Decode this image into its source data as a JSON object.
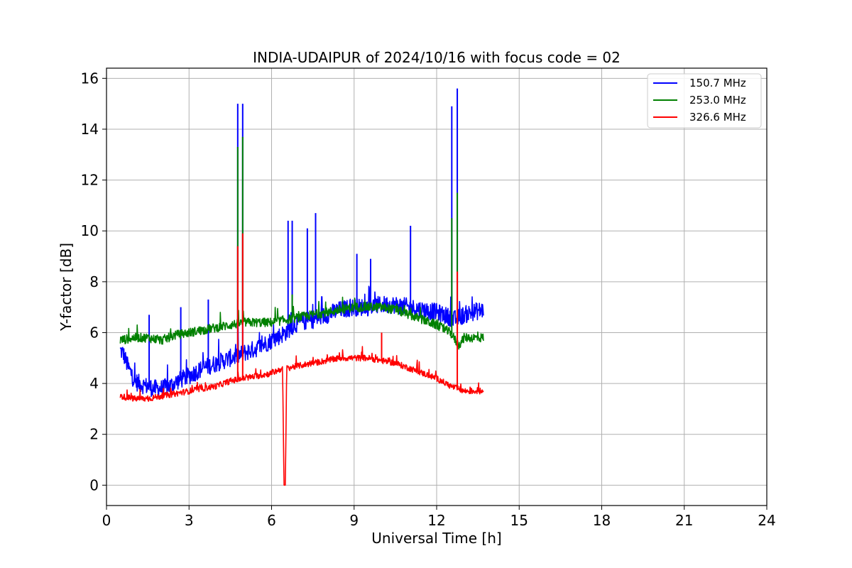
{
  "chart_data": {
    "type": "line",
    "title": "INDIA-UDAIPUR of 2024/10/16 with focus code = 02",
    "xlabel": "Universal Time [h]",
    "ylabel": "Y-factor [dB]",
    "xlim": [
      0,
      24
    ],
    "ylim": [
      -0.8,
      16.4
    ],
    "xticks": [
      0,
      3,
      6,
      9,
      12,
      15,
      18,
      21,
      24
    ],
    "yticks": [
      0,
      2,
      4,
      6,
      8,
      10,
      12,
      14,
      16
    ],
    "grid": true,
    "legend_position": "top-right",
    "series": [
      {
        "name": "150.7 MHz",
        "color": "#0000ff",
        "x": [
          0.5,
          0.6,
          0.7,
          0.8,
          0.9,
          1.0,
          1.2,
          1.4,
          1.5,
          1.7,
          2.0,
          2.3,
          2.6,
          3.0,
          3.5,
          4.0,
          4.5,
          4.8,
          5.0,
          5.5,
          6.0,
          6.5,
          6.8,
          7.0,
          7.5,
          8.0,
          8.5,
          9.0,
          9.5,
          10.0,
          10.5,
          11.0,
          11.5,
          12.0,
          12.5,
          12.6,
          12.8,
          13.0,
          13.3,
          13.7
        ],
        "y": [
          5.3,
          5.2,
          4.9,
          4.6,
          4.4,
          4.1,
          4.0,
          3.9,
          3.9,
          3.8,
          3.8,
          3.9,
          4.1,
          4.3,
          4.6,
          4.8,
          5.0,
          5.1,
          5.2,
          5.4,
          5.7,
          6.0,
          6.3,
          6.4,
          6.5,
          6.7,
          6.9,
          7.0,
          7.0,
          7.1,
          7.1,
          7.0,
          6.9,
          6.8,
          6.6,
          6.5,
          6.6,
          6.7,
          6.8,
          6.9
        ],
        "spikes": [
          {
            "x": 1.55,
            "y": 6.7
          },
          {
            "x": 2.7,
            "y": 7.0
          },
          {
            "x": 3.7,
            "y": 7.3
          },
          {
            "x": 4.77,
            "y": 15.0
          },
          {
            "x": 4.95,
            "y": 15.0
          },
          {
            "x": 6.6,
            "y": 10.4
          },
          {
            "x": 6.75,
            "y": 10.4
          },
          {
            "x": 7.3,
            "y": 10.1
          },
          {
            "x": 7.6,
            "y": 10.7
          },
          {
            "x": 9.1,
            "y": 9.1
          },
          {
            "x": 9.6,
            "y": 8.9
          },
          {
            "x": 11.05,
            "y": 10.2
          },
          {
            "x": 12.55,
            "y": 14.9
          },
          {
            "x": 12.75,
            "y": 15.6
          }
        ]
      },
      {
        "name": "253.0 MHz",
        "color": "#008000",
        "x": [
          0.5,
          1.0,
          1.5,
          2.0,
          2.5,
          3.0,
          3.5,
          4.0,
          4.5,
          5.0,
          5.5,
          6.0,
          6.5,
          7.0,
          7.5,
          8.0,
          8.5,
          9.0,
          9.5,
          10.0,
          10.5,
          11.0,
          11.5,
          12.0,
          12.5,
          12.8,
          13.0,
          13.3,
          13.7
        ],
        "y": [
          5.7,
          5.8,
          5.8,
          5.7,
          5.9,
          6.0,
          6.1,
          6.2,
          6.3,
          6.4,
          6.4,
          6.4,
          6.5,
          6.6,
          6.7,
          6.8,
          6.9,
          7.0,
          7.0,
          7.0,
          6.9,
          6.7,
          6.5,
          6.3,
          6.0,
          5.5,
          5.8,
          5.8,
          5.8
        ],
        "spikes": [
          {
            "x": 4.77,
            "y": 13.3
          },
          {
            "x": 4.95,
            "y": 13.7
          },
          {
            "x": 6.75,
            "y": 7.5
          },
          {
            "x": 12.55,
            "y": 10.5
          },
          {
            "x": 12.75,
            "y": 11.5
          }
        ]
      },
      {
        "name": "326.6 MHz",
        "color": "#ff0000",
        "x": [
          0.5,
          1.0,
          1.5,
          2.0,
          2.5,
          3.0,
          3.5,
          4.0,
          4.5,
          5.0,
          5.5,
          6.0,
          6.4,
          6.45,
          6.5,
          6.55,
          7.0,
          7.5,
          8.0,
          8.5,
          9.0,
          9.5,
          10.0,
          10.5,
          11.0,
          11.5,
          12.0,
          12.5,
          13.0,
          13.3,
          13.7
        ],
        "y": [
          3.5,
          3.4,
          3.4,
          3.5,
          3.6,
          3.7,
          3.8,
          3.9,
          4.1,
          4.2,
          4.3,
          4.4,
          4.6,
          0.0,
          0.0,
          4.6,
          4.7,
          4.8,
          4.9,
          5.0,
          5.0,
          5.0,
          4.9,
          4.8,
          4.6,
          4.4,
          4.2,
          3.9,
          3.7,
          3.7,
          3.7
        ],
        "spikes": [
          {
            "x": 4.77,
            "y": 9.4
          },
          {
            "x": 4.95,
            "y": 9.9
          },
          {
            "x": 10.0,
            "y": 6.0
          },
          {
            "x": 12.75,
            "y": 8.4
          }
        ]
      }
    ]
  }
}
